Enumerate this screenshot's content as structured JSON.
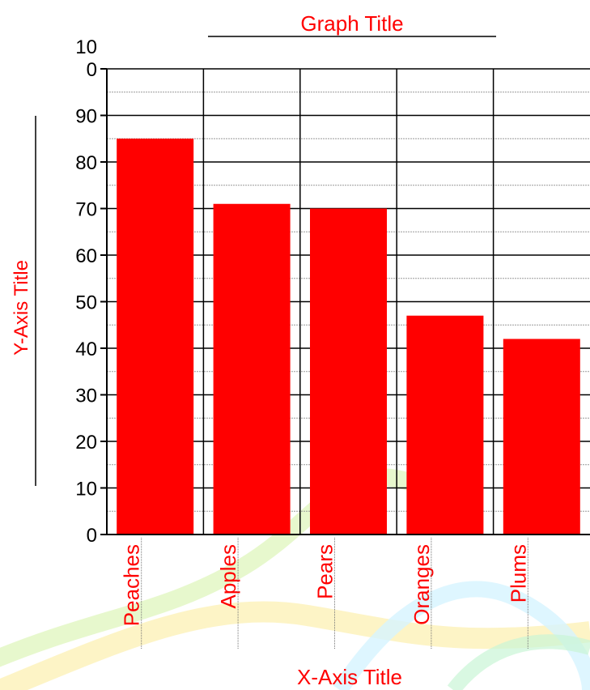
{
  "chart_data": {
    "type": "bar",
    "title": "Graph Title",
    "xlabel": "X-Axis Title",
    "ylabel": "Y-Axis Title",
    "categories": [
      "Peaches",
      "Apples",
      "Pears",
      "Oranges",
      "Plums"
    ],
    "values": [
      85,
      71,
      70,
      47,
      42
    ],
    "ylim": [
      0,
      100
    ],
    "yticks": [
      {
        "v": 0,
        "lines": [
          "0"
        ]
      },
      {
        "v": 10,
        "lines": [
          "10"
        ]
      },
      {
        "v": 20,
        "lines": [
          "20"
        ]
      },
      {
        "v": 30,
        "lines": [
          "30"
        ]
      },
      {
        "v": 40,
        "lines": [
          "40"
        ]
      },
      {
        "v": 50,
        "lines": [
          "50"
        ]
      },
      {
        "v": 60,
        "lines": [
          "60"
        ]
      },
      {
        "v": 70,
        "lines": [
          "70"
        ]
      },
      {
        "v": 80,
        "lines": [
          "80"
        ]
      },
      {
        "v": 90,
        "lines": [
          "90"
        ]
      },
      {
        "v": 100,
        "lines": [
          "10",
          "0"
        ]
      }
    ],
    "grid": true,
    "colors": {
      "bar": "#ff0000",
      "title_text": "#ff0000",
      "axis": "#000000",
      "grid_major": "#000000",
      "grid_minor": "#9a9a9a"
    }
  }
}
